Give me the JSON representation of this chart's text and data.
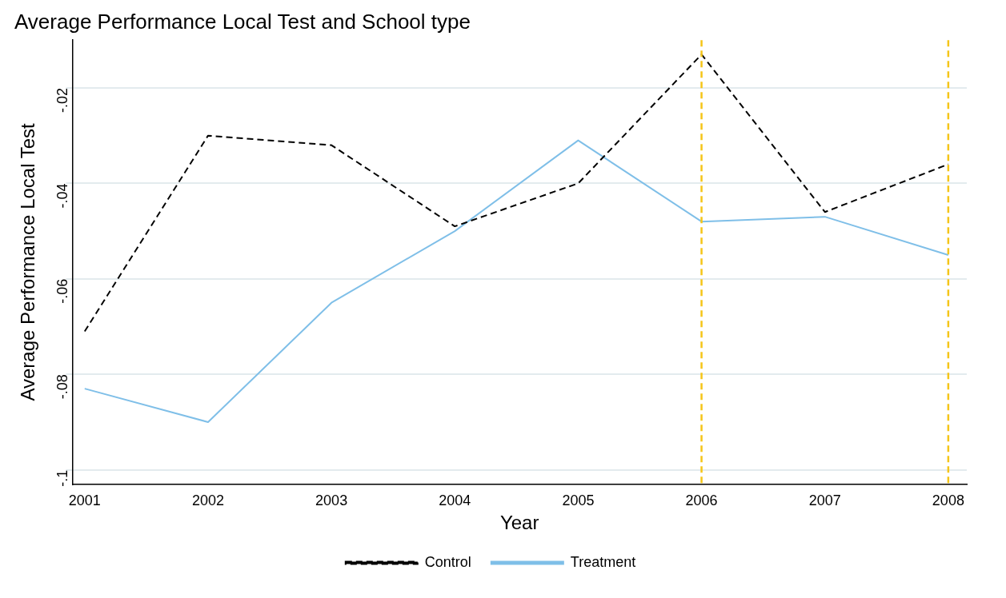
{
  "chart_data": {
    "type": "line",
    "title": "Average Performance Local Test and School type",
    "xlabel": "Year",
    "ylabel": "Average Performance Local Test",
    "x": [
      2001,
      2002,
      2003,
      2004,
      2005,
      2006,
      2007,
      2008
    ],
    "series": [
      {
        "name": "Control",
        "color": "#000000",
        "line_style": "dashed",
        "values": [
          -0.071,
          -0.03,
          -0.032,
          -0.049,
          -0.04,
          -0.013,
          -0.046,
          -0.036
        ]
      },
      {
        "name": "Treatment",
        "color": "#7fbfe8",
        "line_style": "solid",
        "values": [
          -0.083,
          -0.09,
          -0.065,
          -0.05,
          -0.031,
          -0.048,
          -0.047,
          -0.055
        ]
      }
    ],
    "xlim": [
      2000.9,
      2008.15
    ],
    "xticks": [
      2001,
      2002,
      2003,
      2004,
      2005,
      2006,
      2007,
      2008
    ],
    "ylim": [
      -0.103,
      -0.01
    ],
    "yticks": [
      {
        "value": -0.1,
        "label": "-.1"
      },
      {
        "value": -0.08,
        "label": "-.08"
      },
      {
        "value": -0.06,
        "label": "-.06"
      },
      {
        "value": -0.04,
        "label": "-.04"
      },
      {
        "value": -0.02,
        "label": "-.02"
      }
    ],
    "ref_lines": [
      {
        "axis": "x",
        "value": 2006,
        "color": "#f5c518",
        "line_style": "dashed"
      },
      {
        "axis": "x",
        "value": 2008,
        "color": "#f5c518",
        "line_style": "dashed"
      }
    ],
    "grid": "y",
    "legend": "bottom",
    "marker": "none"
  }
}
